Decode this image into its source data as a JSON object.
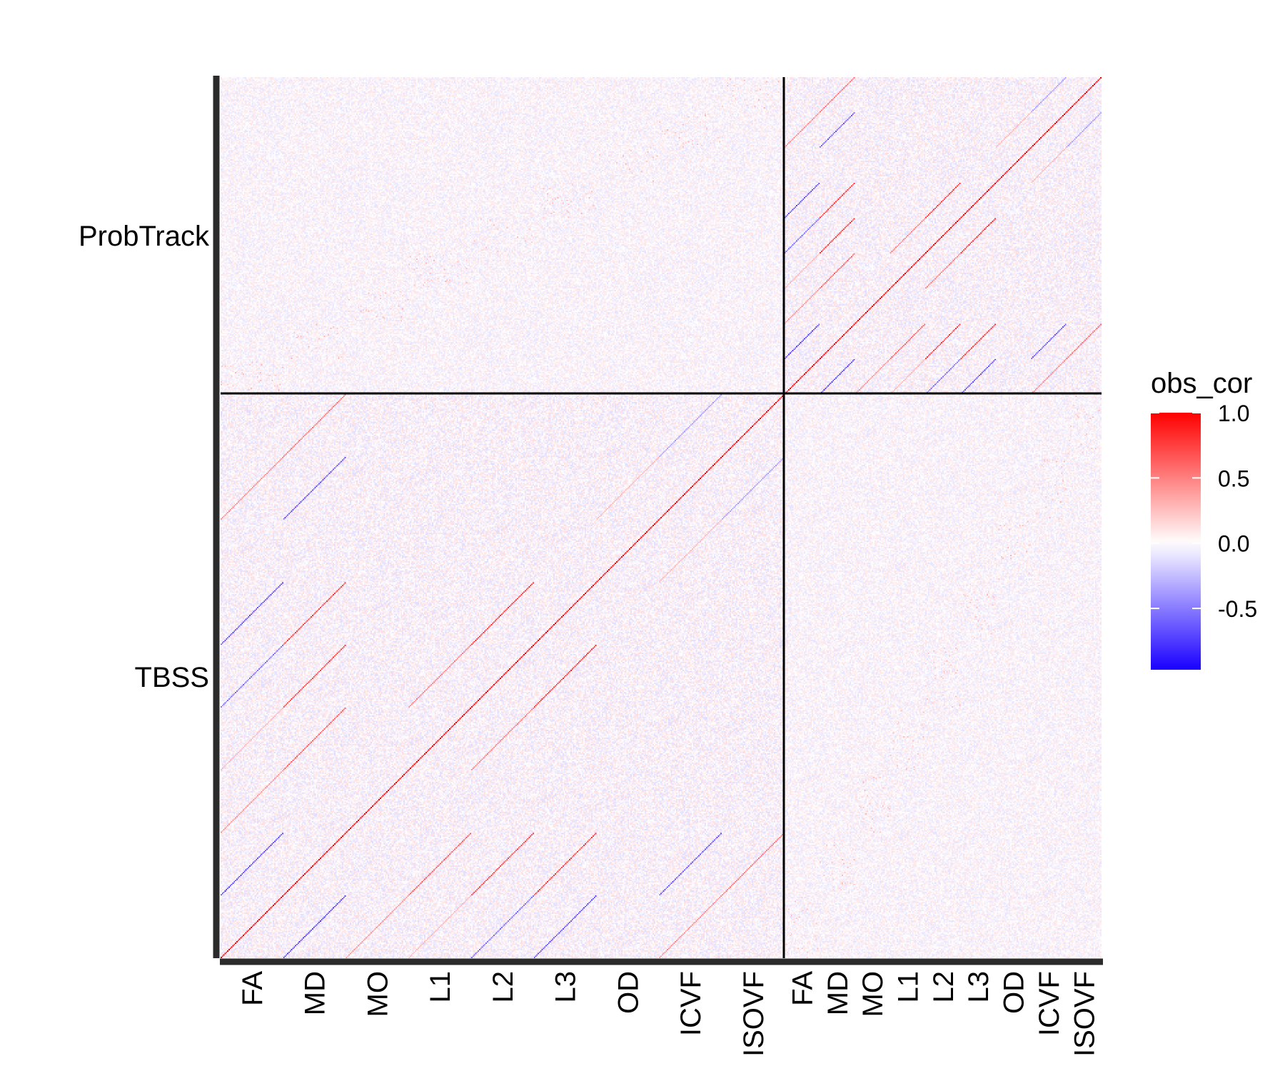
{
  "chart_data": {
    "type": "heatmap",
    "title": "",
    "xlabel": "",
    "ylabel": "",
    "legend": {
      "title": "obs_cor",
      "placement": "right",
      "ticks": [
        1.0,
        0.5,
        0.0,
        -0.5
      ],
      "tick_labels": [
        "1.0",
        "0.5",
        "0.0",
        "-0.5"
      ],
      "range": [
        -0.97,
        1.0
      ],
      "colors": {
        "low": "#1a00ff",
        "mid": "#ffffff",
        "high": "#ff0000"
      }
    },
    "y_groups": [
      "ProbTrack",
      "TBSS"
    ],
    "x_groups": [
      "TBSS",
      "ProbTrack"
    ],
    "x_tick_labels": [
      "FA",
      "MD",
      "MO",
      "L1",
      "L2",
      "L3",
      "OD",
      "ICVF",
      "ISOVF",
      "FA",
      "MD",
      "MO",
      "L1",
      "L2",
      "L3",
      "OD",
      "ICVF",
      "ISOVF"
    ],
    "blocks": {
      "TBSS": {
        "measures": 9,
        "regions_per_measure": 48
      },
      "ProbTrack": {
        "measures": 9,
        "regions_per_measure": 27
      }
    },
    "diagonal_correlation": 1.0,
    "background_correlation_range": [
      -0.15,
      0.15
    ],
    "measure_pair_correlations": [
      {
        "pair": [
          "FA",
          "MD"
        ],
        "value": -0.8
      },
      {
        "pair": [
          "FA",
          "MO"
        ],
        "value": 0.45
      },
      {
        "pair": [
          "FA",
          "L1"
        ],
        "value": 0.3
      },
      {
        "pair": [
          "FA",
          "L2"
        ],
        "value": -0.6
      },
      {
        "pair": [
          "FA",
          "L3"
        ],
        "value": -0.75
      },
      {
        "pair": [
          "FA",
          "ICVF"
        ],
        "value": 0.5
      },
      {
        "pair": [
          "MD",
          "L1"
        ],
        "value": 0.7
      },
      {
        "pair": [
          "MD",
          "L2"
        ],
        "value": 0.85
      },
      {
        "pair": [
          "MD",
          "L3"
        ],
        "value": 0.85
      },
      {
        "pair": [
          "MD",
          "ICVF"
        ],
        "value": -0.7
      },
      {
        "pair": [
          "MD",
          "ISOVF"
        ],
        "value": 0.6
      },
      {
        "pair": [
          "L2",
          "L3"
        ],
        "value": 0.9
      },
      {
        "pair": [
          "L1",
          "L2"
        ],
        "value": 0.55
      },
      {
        "pair": [
          "OD",
          "ICVF"
        ],
        "value": 0.3
      },
      {
        "pair": [
          "ICVF",
          "ISOVF"
        ],
        "value": -0.4
      }
    ]
  }
}
